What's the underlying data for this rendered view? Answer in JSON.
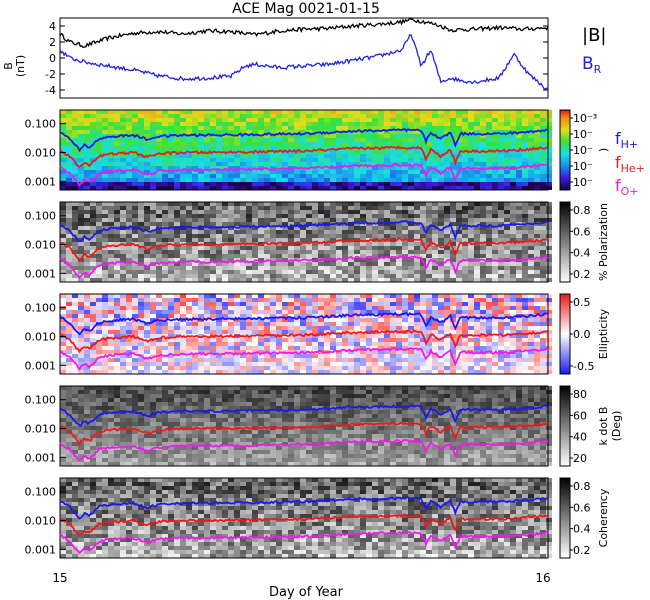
{
  "chart_data": {
    "type": "line",
    "title": "ACE Mag 0021-01-15",
    "xlabel": "Day of Year",
    "x_ticks": [
      "15",
      "16"
    ],
    "xlim": [
      15,
      16
    ],
    "top_panel": {
      "ylabel_top": "B",
      "ylabel_bottom": "(nT)",
      "yticks": [
        "4",
        "2",
        "0",
        "-2",
        "-4"
      ],
      "tick_values": [
        4,
        2,
        0,
        -2,
        -4
      ],
      "ylim": [
        -5,
        5
      ],
      "legend": [
        {
          "label": "|B|",
          "color": "#000000"
        },
        {
          "label": "B",
          "sub": "R",
          "color": "#2222dd"
        }
      ],
      "series": [
        {
          "name": "|B|",
          "color": "#000000",
          "x": [
            15.0,
            15.02,
            15.05,
            15.1,
            15.15,
            15.2,
            15.25,
            15.3,
            15.35,
            15.4,
            15.45,
            15.5,
            15.55,
            15.6,
            15.65,
            15.7,
            15.72,
            15.75,
            15.78,
            15.8,
            15.85,
            15.9,
            15.95,
            16.0
          ],
          "values": [
            3.0,
            2.0,
            1.5,
            2.5,
            3.1,
            3.3,
            3.0,
            3.4,
            3.3,
            2.9,
            3.4,
            3.6,
            3.7,
            4.0,
            4.2,
            4.5,
            4.8,
            4.5,
            4.0,
            3.5,
            3.6,
            3.8,
            3.6,
            3.8
          ]
        },
        {
          "name": "B_R",
          "color": "#2222dd",
          "x": [
            15.0,
            15.02,
            15.05,
            15.1,
            15.15,
            15.2,
            15.25,
            15.3,
            15.35,
            15.38,
            15.4,
            15.45,
            15.5,
            15.55,
            15.6,
            15.65,
            15.7,
            15.72,
            15.74,
            15.76,
            15.78,
            15.8,
            15.82,
            15.85,
            15.9,
            15.93,
            15.96,
            16.0
          ],
          "values": [
            1.0,
            0.0,
            -0.5,
            -1.0,
            -1.5,
            -2.2,
            -2.6,
            -2.5,
            -2.3,
            -1.0,
            -0.8,
            -1.2,
            -1.0,
            -0.8,
            -0.3,
            0.2,
            1.0,
            3.0,
            -1.0,
            1.0,
            -3.0,
            -2.5,
            -2.8,
            -3.0,
            -2.5,
            0.5,
            -2.0,
            -4.0
          ]
        }
      ]
    },
    "freq_panels": {
      "yticks": [
        "0.100",
        "0.010",
        "0.001"
      ],
      "tick_values": [
        0.1,
        0.01,
        0.001
      ],
      "ylim": [
        0.0005,
        0.3
      ],
      "yscale": "log",
      "curves": [
        {
          "name": "f_H+",
          "color": "#1a1aee",
          "x": [
            15.0,
            15.02,
            15.04,
            15.05,
            15.06,
            15.08,
            15.1,
            15.15,
            15.18,
            15.2,
            15.25,
            15.3,
            15.4,
            15.5,
            15.6,
            15.7,
            15.74,
            15.75,
            15.76,
            15.78,
            15.8,
            15.81,
            15.82,
            15.84,
            15.9,
            15.95,
            16.0
          ],
          "values": [
            0.05,
            0.03,
            0.012,
            0.018,
            0.015,
            0.03,
            0.035,
            0.04,
            0.028,
            0.036,
            0.04,
            0.04,
            0.042,
            0.045,
            0.055,
            0.06,
            0.058,
            0.025,
            0.05,
            0.03,
            0.05,
            0.018,
            0.045,
            0.045,
            0.045,
            0.05,
            0.06
          ]
        },
        {
          "name": "f_He+",
          "color": "#ee1a1a",
          "x": [
            15.0,
            15.02,
            15.04,
            15.05,
            15.06,
            15.08,
            15.1,
            15.15,
            15.18,
            15.2,
            15.25,
            15.3,
            15.4,
            15.5,
            15.6,
            15.7,
            15.74,
            15.75,
            15.76,
            15.78,
            15.8,
            15.81,
            15.82,
            15.84,
            15.9,
            15.95,
            16.0
          ],
          "values": [
            0.0125,
            0.0075,
            0.003,
            0.0045,
            0.0037,
            0.0075,
            0.0087,
            0.01,
            0.007,
            0.009,
            0.01,
            0.01,
            0.0105,
            0.0112,
            0.0137,
            0.015,
            0.0145,
            0.0062,
            0.0125,
            0.0075,
            0.0125,
            0.0045,
            0.0112,
            0.0112,
            0.0112,
            0.0125,
            0.015
          ]
        },
        {
          "name": "f_O+",
          "color": "#ee1aee",
          "x": [
            15.0,
            15.02,
            15.04,
            15.05,
            15.06,
            15.08,
            15.1,
            15.15,
            15.18,
            15.2,
            15.25,
            15.3,
            15.4,
            15.5,
            15.6,
            15.7,
            15.74,
            15.75,
            15.76,
            15.78,
            15.8,
            15.81,
            15.82,
            15.84,
            15.9,
            15.95,
            16.0
          ],
          "values": [
            0.0031,
            0.0019,
            0.00075,
            0.0011,
            0.0009,
            0.0019,
            0.0022,
            0.0025,
            0.0017,
            0.0022,
            0.0025,
            0.0025,
            0.0026,
            0.0028,
            0.0034,
            0.0037,
            0.0036,
            0.0016,
            0.0031,
            0.0019,
            0.0031,
            0.0011,
            0.0028,
            0.0028,
            0.0028,
            0.0031,
            0.0037
          ]
        }
      ],
      "panels": [
        {
          "name": "power",
          "colormap": "rainbow",
          "colorbar_ticks": [
            "10⁻³",
            "10⁻",
            "10⁻",
            "10⁻",
            "10⁻"
          ],
          "colorbar_label": ")"
        },
        {
          "name": "polarization",
          "colormap": "gray",
          "colorbar_ticks": [
            "0.8",
            "0.6",
            "0.4",
            "0.2"
          ],
          "colorbar_label": "% Polarization"
        },
        {
          "name": "ellipticity",
          "colormap": "bwr",
          "colorbar_ticks": [
            "0.5",
            "0.0",
            "-0.5"
          ],
          "colorbar_label": "Ellipticity"
        },
        {
          "name": "kdotb",
          "colormap": "gray",
          "colorbar_ticks": [
            "80",
            "60",
            "40",
            "20"
          ],
          "colorbar_label": "k dot B",
          "colorbar_label2": "(Deg)"
        },
        {
          "name": "coherency",
          "colormap": "gray",
          "colorbar_ticks": [
            "0.8",
            "0.6",
            "0.4",
            "0.2"
          ],
          "colorbar_label": "Coherency"
        }
      ]
    },
    "species_legend": [
      {
        "base": "f",
        "sub": "H+",
        "color": "#1a1aee"
      },
      {
        "base": "f",
        "sub": "He+",
        "color": "#ee1a1a"
      },
      {
        "base": "f",
        "sub": "O+",
        "color": "#ee1aee"
      }
    ]
  }
}
